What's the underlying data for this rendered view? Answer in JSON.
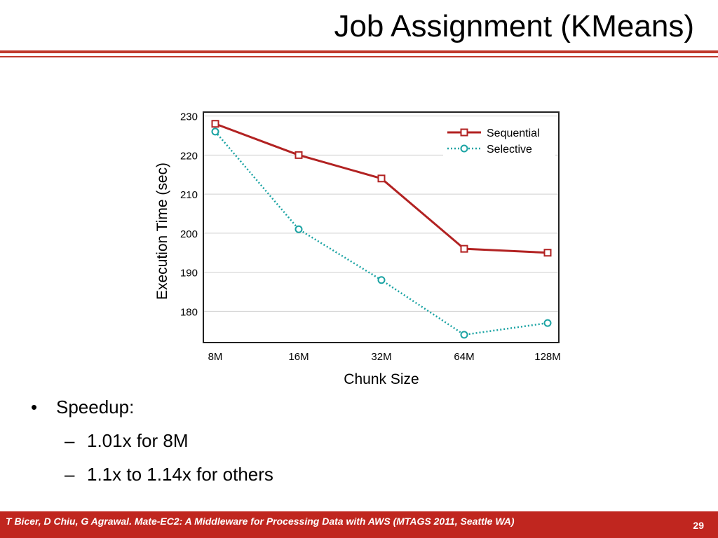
{
  "slide": {
    "title": "Job Assignment (KMeans)",
    "bullets": {
      "main": "Speedup:",
      "sub": [
        "1.01x for 8M",
        "1.1x to 1.14x for others"
      ]
    },
    "footer": {
      "citation": "T Bicer, D Chiu, G Agrawal. Mate-EC2: A Middleware for Processing Data with AWS (MTAGS 2011, Seattle WA)",
      "page_number": "29"
    },
    "colors": {
      "accent": "#c0261f",
      "sequential": "#b22222",
      "selective": "#1aa3a3"
    }
  },
  "chart_data": {
    "type": "line",
    "title": "",
    "xlabel": "Chunk Size",
    "ylabel": "Execution Time (sec)",
    "categories": [
      "8M",
      "16M",
      "32M",
      "64M",
      "128M"
    ],
    "y_ticks": [
      180,
      190,
      200,
      210,
      220,
      230
    ],
    "ylim": [
      172,
      231
    ],
    "grid": true,
    "legend_position": "top-right",
    "series": [
      {
        "name": "Sequential",
        "values": [
          228,
          220,
          214,
          196,
          195
        ],
        "color": "#b22222",
        "marker": "square",
        "line_style": "solid"
      },
      {
        "name": "Selective",
        "values": [
          226,
          201,
          188,
          174,
          177
        ],
        "color": "#1aa3a3",
        "marker": "circle",
        "line_style": "dotted"
      }
    ]
  }
}
